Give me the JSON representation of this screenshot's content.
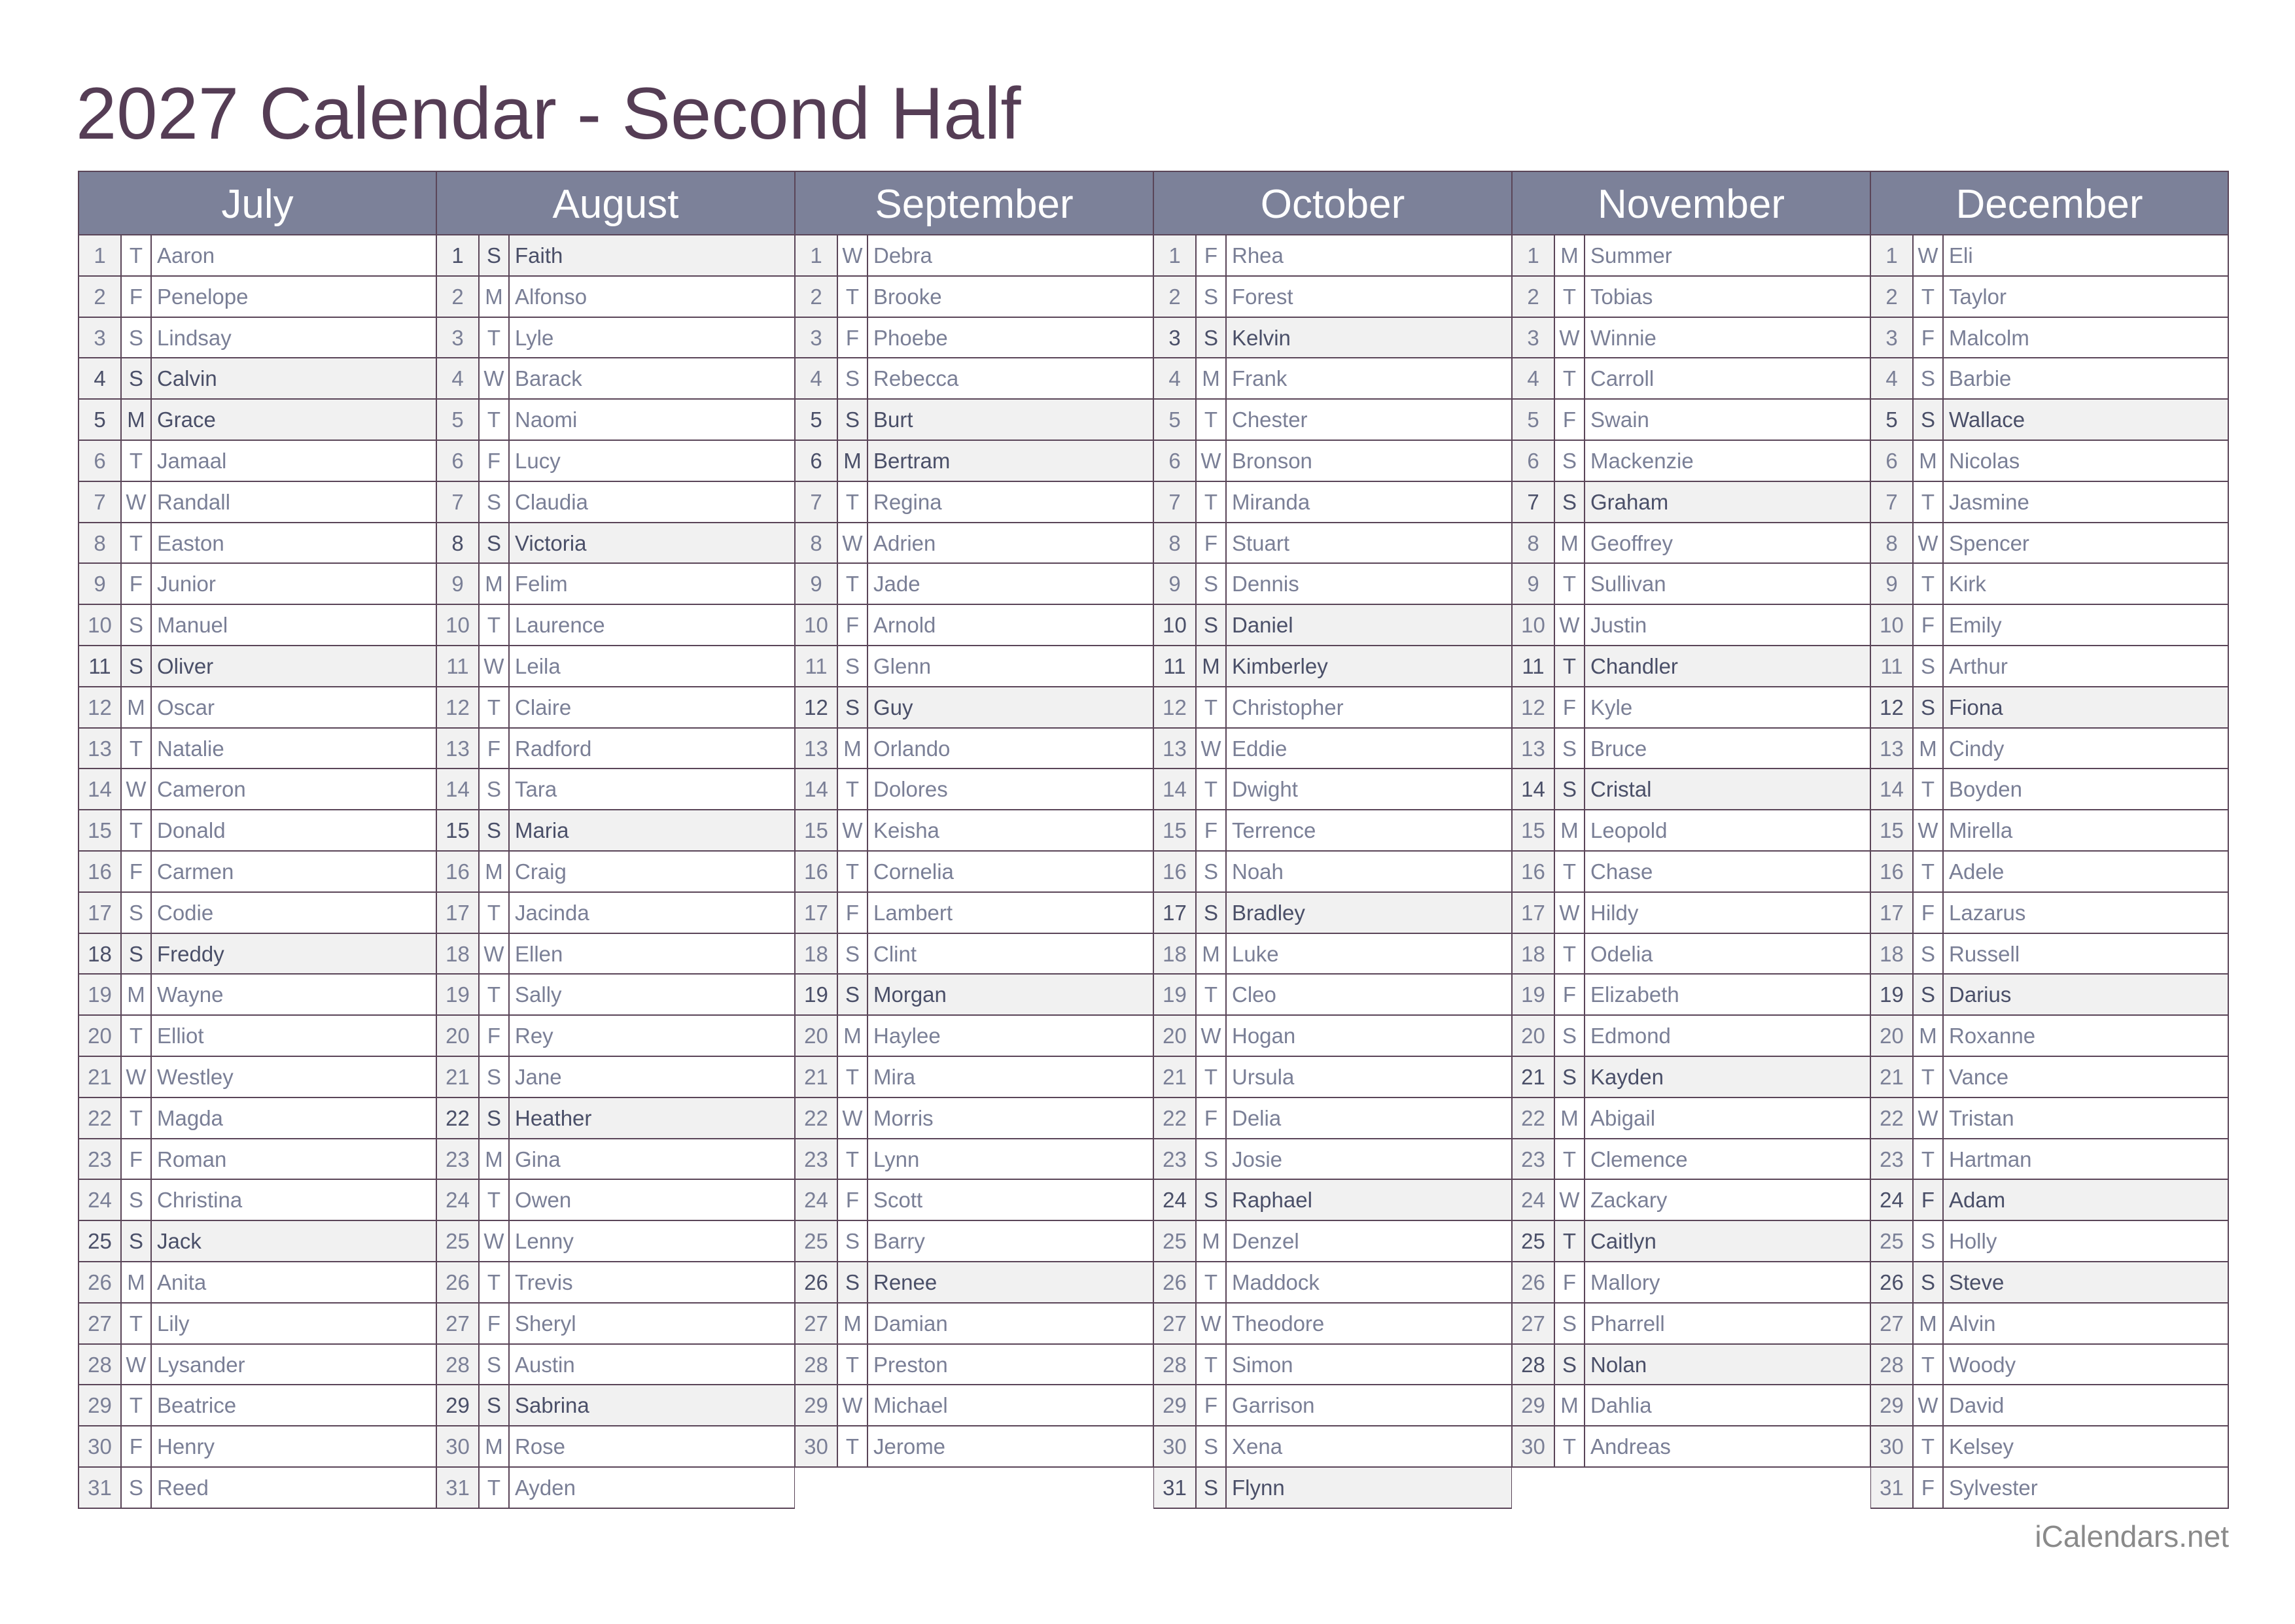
{
  "title": "2027 Calendar - Second Half",
  "footer": "iCalendars.net",
  "colors": {
    "header_bg": "#7c8199",
    "title": "#553d55",
    "highlight_bg": "#f1f1f1",
    "border": "#5a4558"
  },
  "months": [
    {
      "name": "July",
      "letters": [
        "T",
        "F",
        "S",
        "S",
        "M",
        "T",
        "W",
        "T",
        "F",
        "S",
        "S",
        "M",
        "T",
        "W",
        "T",
        "F",
        "S",
        "S",
        "M",
        "T",
        "W",
        "T",
        "F",
        "S",
        "S",
        "M",
        "T",
        "W",
        "T",
        "F",
        "S"
      ],
      "names": [
        "Aaron",
        "Penelope",
        "Lindsay",
        "Calvin",
        "Grace",
        "Jamaal",
        "Randall",
        "Easton",
        "Junior",
        "Manuel",
        "Oliver",
        "Oscar",
        "Natalie",
        "Cameron",
        "Donald",
        "Carmen",
        "Codie",
        "Freddy",
        "Wayne",
        "Elliot",
        "Westley",
        "Magda",
        "Roman",
        "Christina",
        "Jack",
        "Anita",
        "Lily",
        "Lysander",
        "Beatrice",
        "Henry",
        "Reed"
      ],
      "highlighted": [
        4,
        5,
        11,
        18,
        25
      ]
    },
    {
      "name": "August",
      "letters": [
        "S",
        "M",
        "T",
        "W",
        "T",
        "F",
        "S",
        "S",
        "M",
        "T",
        "W",
        "T",
        "F",
        "S",
        "S",
        "M",
        "T",
        "W",
        "T",
        "F",
        "S",
        "S",
        "M",
        "T",
        "W",
        "T",
        "F",
        "S",
        "S",
        "M",
        "T"
      ],
      "names": [
        "Faith",
        "Alfonso",
        "Lyle",
        "Barack",
        "Naomi",
        "Lucy",
        "Claudia",
        "Victoria",
        "Felim",
        "Laurence",
        "Leila",
        "Claire",
        "Radford",
        "Tara",
        "Maria",
        "Craig",
        "Jacinda",
        "Ellen",
        "Sally",
        "Rey",
        "Jane",
        "Heather",
        "Gina",
        "Owen",
        "Lenny",
        "Trevis",
        "Sheryl",
        "Austin",
        "Sabrina",
        "Rose",
        "Ayden"
      ],
      "highlighted": [
        1,
        8,
        15,
        22,
        29
      ]
    },
    {
      "name": "September",
      "letters": [
        "W",
        "T",
        "F",
        "S",
        "S",
        "M",
        "T",
        "W",
        "T",
        "F",
        "S",
        "S",
        "M",
        "T",
        "W",
        "T",
        "F",
        "S",
        "S",
        "M",
        "T",
        "W",
        "T",
        "F",
        "S",
        "S",
        "M",
        "T",
        "W",
        "T"
      ],
      "names": [
        "Debra",
        "Brooke",
        "Phoebe",
        "Rebecca",
        "Burt",
        "Bertram",
        "Regina",
        "Adrien",
        "Jade",
        "Arnold",
        "Glenn",
        "Guy",
        "Orlando",
        "Dolores",
        "Keisha",
        "Cornelia",
        "Lambert",
        "Clint",
        "Morgan",
        "Haylee",
        "Mira",
        "Morris",
        "Lynn",
        "Scott",
        "Barry",
        "Renee",
        "Damian",
        "Preston",
        "Michael",
        "Jerome"
      ],
      "highlighted": [
        5,
        6,
        12,
        19,
        26
      ]
    },
    {
      "name": "October",
      "letters": [
        "F",
        "S",
        "S",
        "M",
        "T",
        "W",
        "T",
        "F",
        "S",
        "S",
        "M",
        "T",
        "W",
        "T",
        "F",
        "S",
        "S",
        "M",
        "T",
        "W",
        "T",
        "F",
        "S",
        "S",
        "M",
        "T",
        "W",
        "T",
        "F",
        "S",
        "S"
      ],
      "names": [
        "Rhea",
        "Forest",
        "Kelvin",
        "Frank",
        "Chester",
        "Bronson",
        "Miranda",
        "Stuart",
        "Dennis",
        "Daniel",
        "Kimberley",
        "Christopher",
        "Eddie",
        "Dwight",
        "Terrence",
        "Noah",
        "Bradley",
        "Luke",
        "Cleo",
        "Hogan",
        "Ursula",
        "Delia",
        "Josie",
        "Raphael",
        "Denzel",
        "Maddock",
        "Theodore",
        "Simon",
        "Garrison",
        "Xena",
        "Flynn"
      ],
      "highlighted": [
        3,
        10,
        11,
        17,
        24,
        31
      ]
    },
    {
      "name": "November",
      "letters": [
        "M",
        "T",
        "W",
        "T",
        "F",
        "S",
        "S",
        "M",
        "T",
        "W",
        "T",
        "F",
        "S",
        "S",
        "M",
        "T",
        "W",
        "T",
        "F",
        "S",
        "S",
        "M",
        "T",
        "W",
        "T",
        "F",
        "S",
        "S",
        "M",
        "T"
      ],
      "names": [
        "Summer",
        "Tobias",
        "Winnie",
        "Carroll",
        "Swain",
        "Mackenzie",
        "Graham",
        "Geoffrey",
        "Sullivan",
        "Justin",
        "Chandler",
        "Kyle",
        "Bruce",
        "Cristal",
        "Leopold",
        "Chase",
        "Hildy",
        "Odelia",
        "Elizabeth",
        "Edmond",
        "Kayden",
        "Abigail",
        "Clemence",
        "Zackary",
        "Caitlyn",
        "Mallory",
        "Pharrell",
        "Nolan",
        "Dahlia",
        "Andreas"
      ],
      "highlighted": [
        7,
        11,
        14,
        21,
        25,
        28
      ]
    },
    {
      "name": "December",
      "letters": [
        "W",
        "T",
        "F",
        "S",
        "S",
        "M",
        "T",
        "W",
        "T",
        "F",
        "S",
        "S",
        "M",
        "T",
        "W",
        "T",
        "F",
        "S",
        "S",
        "M",
        "T",
        "W",
        "T",
        "F",
        "S",
        "S",
        "M",
        "T",
        "W",
        "T",
        "F"
      ],
      "names": [
        "Eli",
        "Taylor",
        "Malcolm",
        "Barbie",
        "Wallace",
        "Nicolas",
        "Jasmine",
        "Spencer",
        "Kirk",
        "Emily",
        "Arthur",
        "Fiona",
        "Cindy",
        "Boyden",
        "Mirella",
        "Adele",
        "Lazarus",
        "Russell",
        "Darius",
        "Roxanne",
        "Vance",
        "Tristan",
        "Hartman",
        "Adam",
        "Holly",
        "Steve",
        "Alvin",
        "Woody",
        "David",
        "Kelsey",
        "Sylvester"
      ],
      "highlighted": [
        5,
        12,
        19,
        24,
        26
      ]
    }
  ]
}
